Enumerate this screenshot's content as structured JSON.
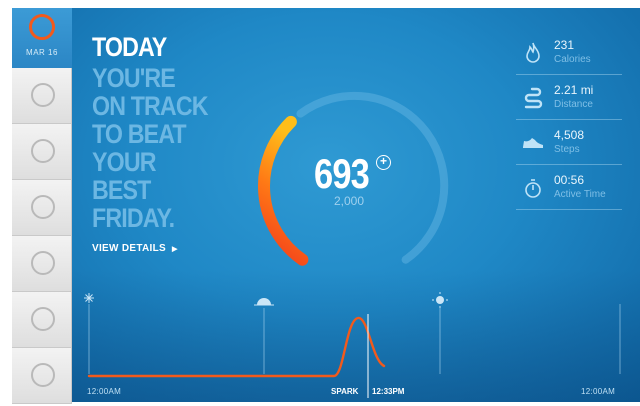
{
  "sidebar": {
    "active_date": "MAR 16",
    "days": [
      "",
      "",
      "",
      "",
      "",
      ""
    ]
  },
  "main": {
    "title": "TODAY",
    "message_lines": [
      "YOU'RE",
      "ON TRACK",
      "TO BEAT",
      "YOUR",
      "BEST",
      "FRIDAY."
    ],
    "view_details": "VIEW DETAILS"
  },
  "gauge": {
    "value": "693",
    "goal": "2,000",
    "progress_fraction": 0.3465,
    "colors": {
      "start": "#f23b1c",
      "end": "#ffbe1a",
      "track": "#5cb1e0"
    }
  },
  "stats": [
    {
      "icon": "flame-icon",
      "value": "231",
      "label": "Calories"
    },
    {
      "icon": "route-icon",
      "value": "2.21 mi",
      "label": "Distance"
    },
    {
      "icon": "shoe-icon",
      "value": "4,508",
      "label": "Steps"
    },
    {
      "icon": "stopwatch-icon",
      "value": "00:56",
      "label": "Active Time"
    }
  ],
  "timeline": {
    "start_label": "12:00AM",
    "end_label": "12:00AM",
    "spark_label": "SPARK",
    "spark_time": "12:33PM",
    "line_color": "#f25a1c"
  }
}
